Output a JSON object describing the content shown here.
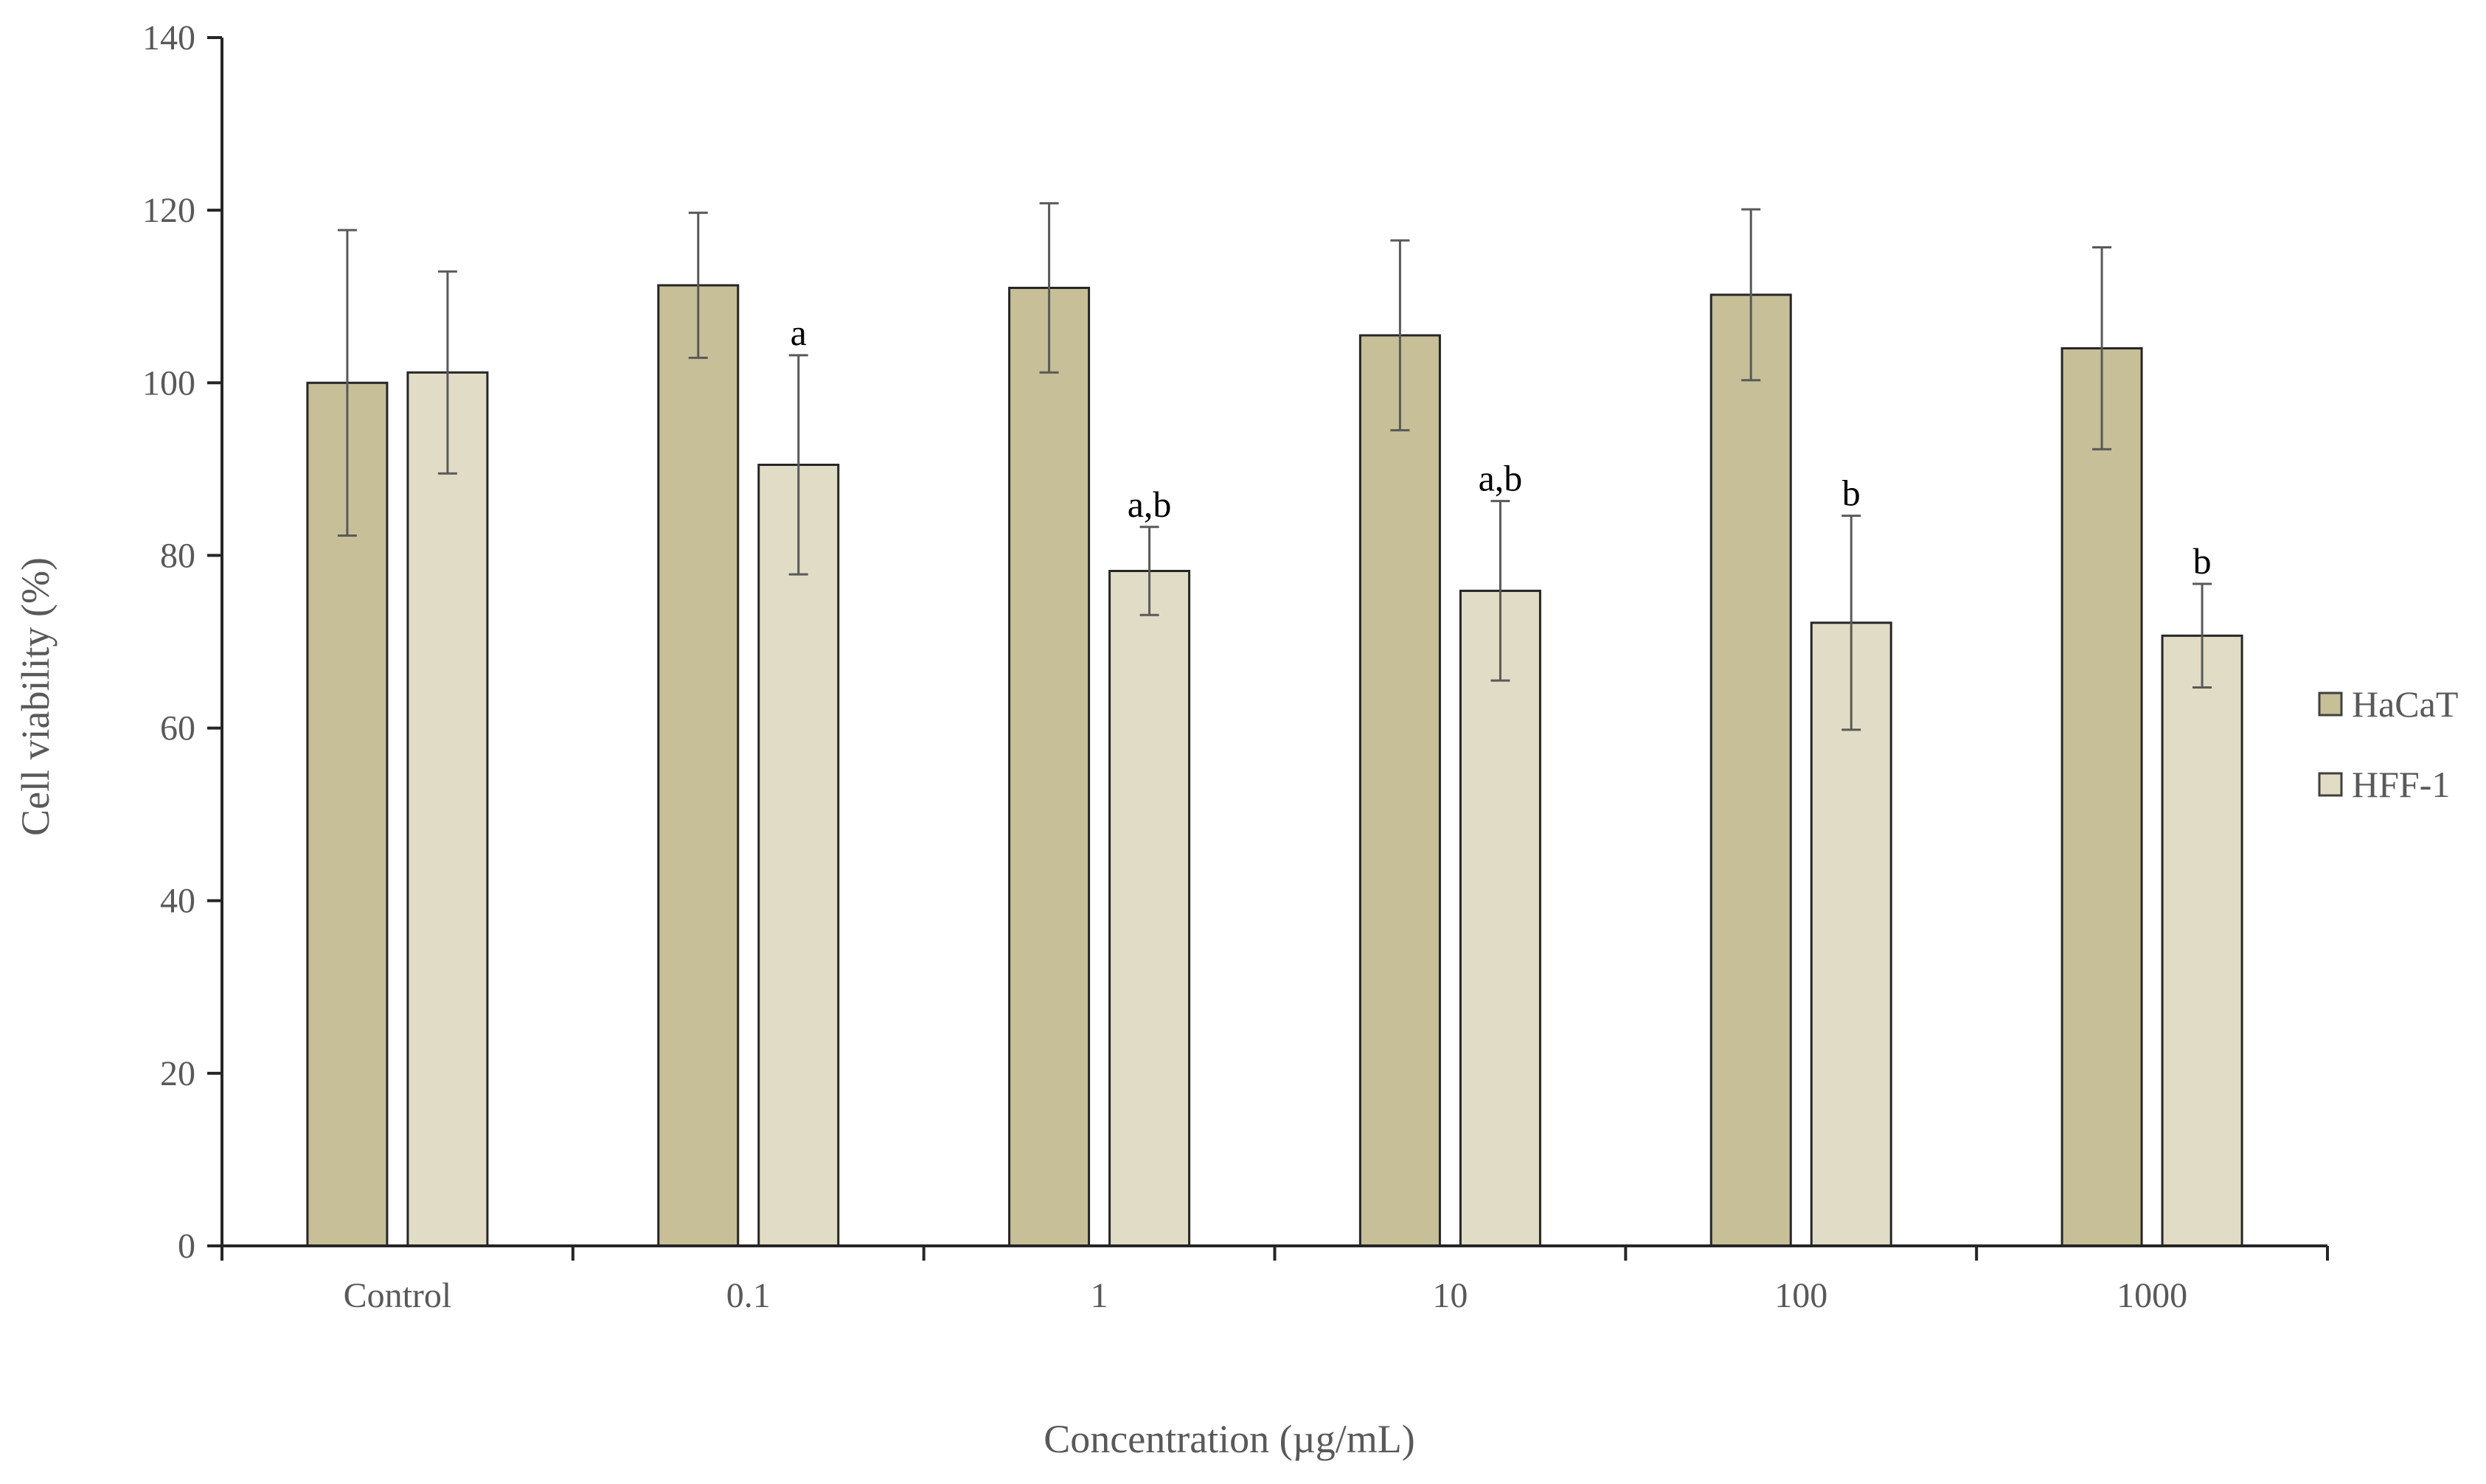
{
  "chart_data": {
    "type": "bar",
    "title": "",
    "xlabel": "Concentration (µg/mL)",
    "ylabel": "Cell viability (%)",
    "ylim": [
      0,
      140
    ],
    "yticks": [
      0,
      20,
      40,
      60,
      80,
      100,
      120,
      140
    ],
    "categories": [
      "Control",
      "0.1",
      "1",
      "10",
      "100",
      "1000"
    ],
    "grid": false,
    "legend_position": "right",
    "series": [
      {
        "name": "HaCaT",
        "color": "#c6bf98",
        "values": [
          100,
          111.3,
          111,
          105.5,
          110.2,
          104
        ],
        "errors": [
          17.7,
          8.4,
          9.8,
          11,
          9.9,
          11.7
        ],
        "annotations": [
          "",
          "",
          "",
          "",
          "",
          ""
        ]
      },
      {
        "name": "HFF-1",
        "color": "#e1dcc5",
        "values": [
          101.2,
          90.5,
          78.2,
          75.9,
          72.2,
          70.7
        ],
        "errors": [
          11.7,
          12.7,
          5.1,
          10.4,
          12.4,
          6
        ],
        "annotations": [
          "",
          "a",
          "a,b",
          "a,b",
          "b",
          "b"
        ]
      }
    ]
  }
}
